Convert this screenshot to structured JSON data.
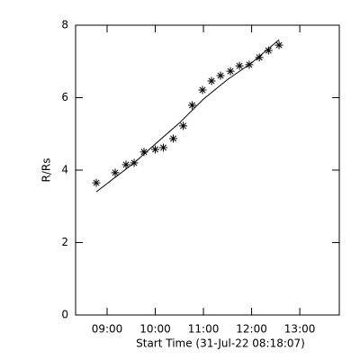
{
  "chart_data": {
    "type": "scatter",
    "xlabel": "Start Time (31-Jul-22 08:18:07)",
    "ylabel": "R/Rs",
    "xlim": [
      8.346,
      13.82
    ],
    "xticks": [
      {
        "value": 9,
        "label": "09:00"
      },
      {
        "value": 10,
        "label": "10:00"
      },
      {
        "value": 11,
        "label": "11:00"
      },
      {
        "value": 12,
        "label": "12:00"
      },
      {
        "value": 13,
        "label": "13:00"
      }
    ],
    "ylim": [
      0,
      8
    ],
    "yticks": [
      0,
      2,
      4,
      6,
      8
    ],
    "series": [
      {
        "type": "scatter",
        "color": "#000000",
        "x": [
          8.776,
          9.168,
          9.393,
          9.561,
          9.766,
          10.0,
          10.168,
          10.374,
          10.58,
          10.766,
          10.98,
          11.168,
          11.355,
          11.56,
          11.748,
          11.95,
          12.16,
          12.35,
          12.57
        ],
        "values": [
          3.65,
          3.93,
          4.15,
          4.2,
          4.5,
          4.57,
          4.62,
          4.87,
          5.22,
          5.79,
          6.21,
          6.46,
          6.61,
          6.73,
          6.88,
          6.91,
          7.11,
          7.3,
          7.45
        ]
      },
      {
        "type": "line",
        "color": "#000000",
        "x": [
          8.776,
          9.58,
          10.0,
          10.5,
          11.0,
          11.5,
          12.0,
          12.57
        ],
        "values": [
          3.4,
          4.22,
          4.72,
          5.3,
          5.96,
          6.5,
          6.96,
          7.6
        ]
      }
    ]
  }
}
